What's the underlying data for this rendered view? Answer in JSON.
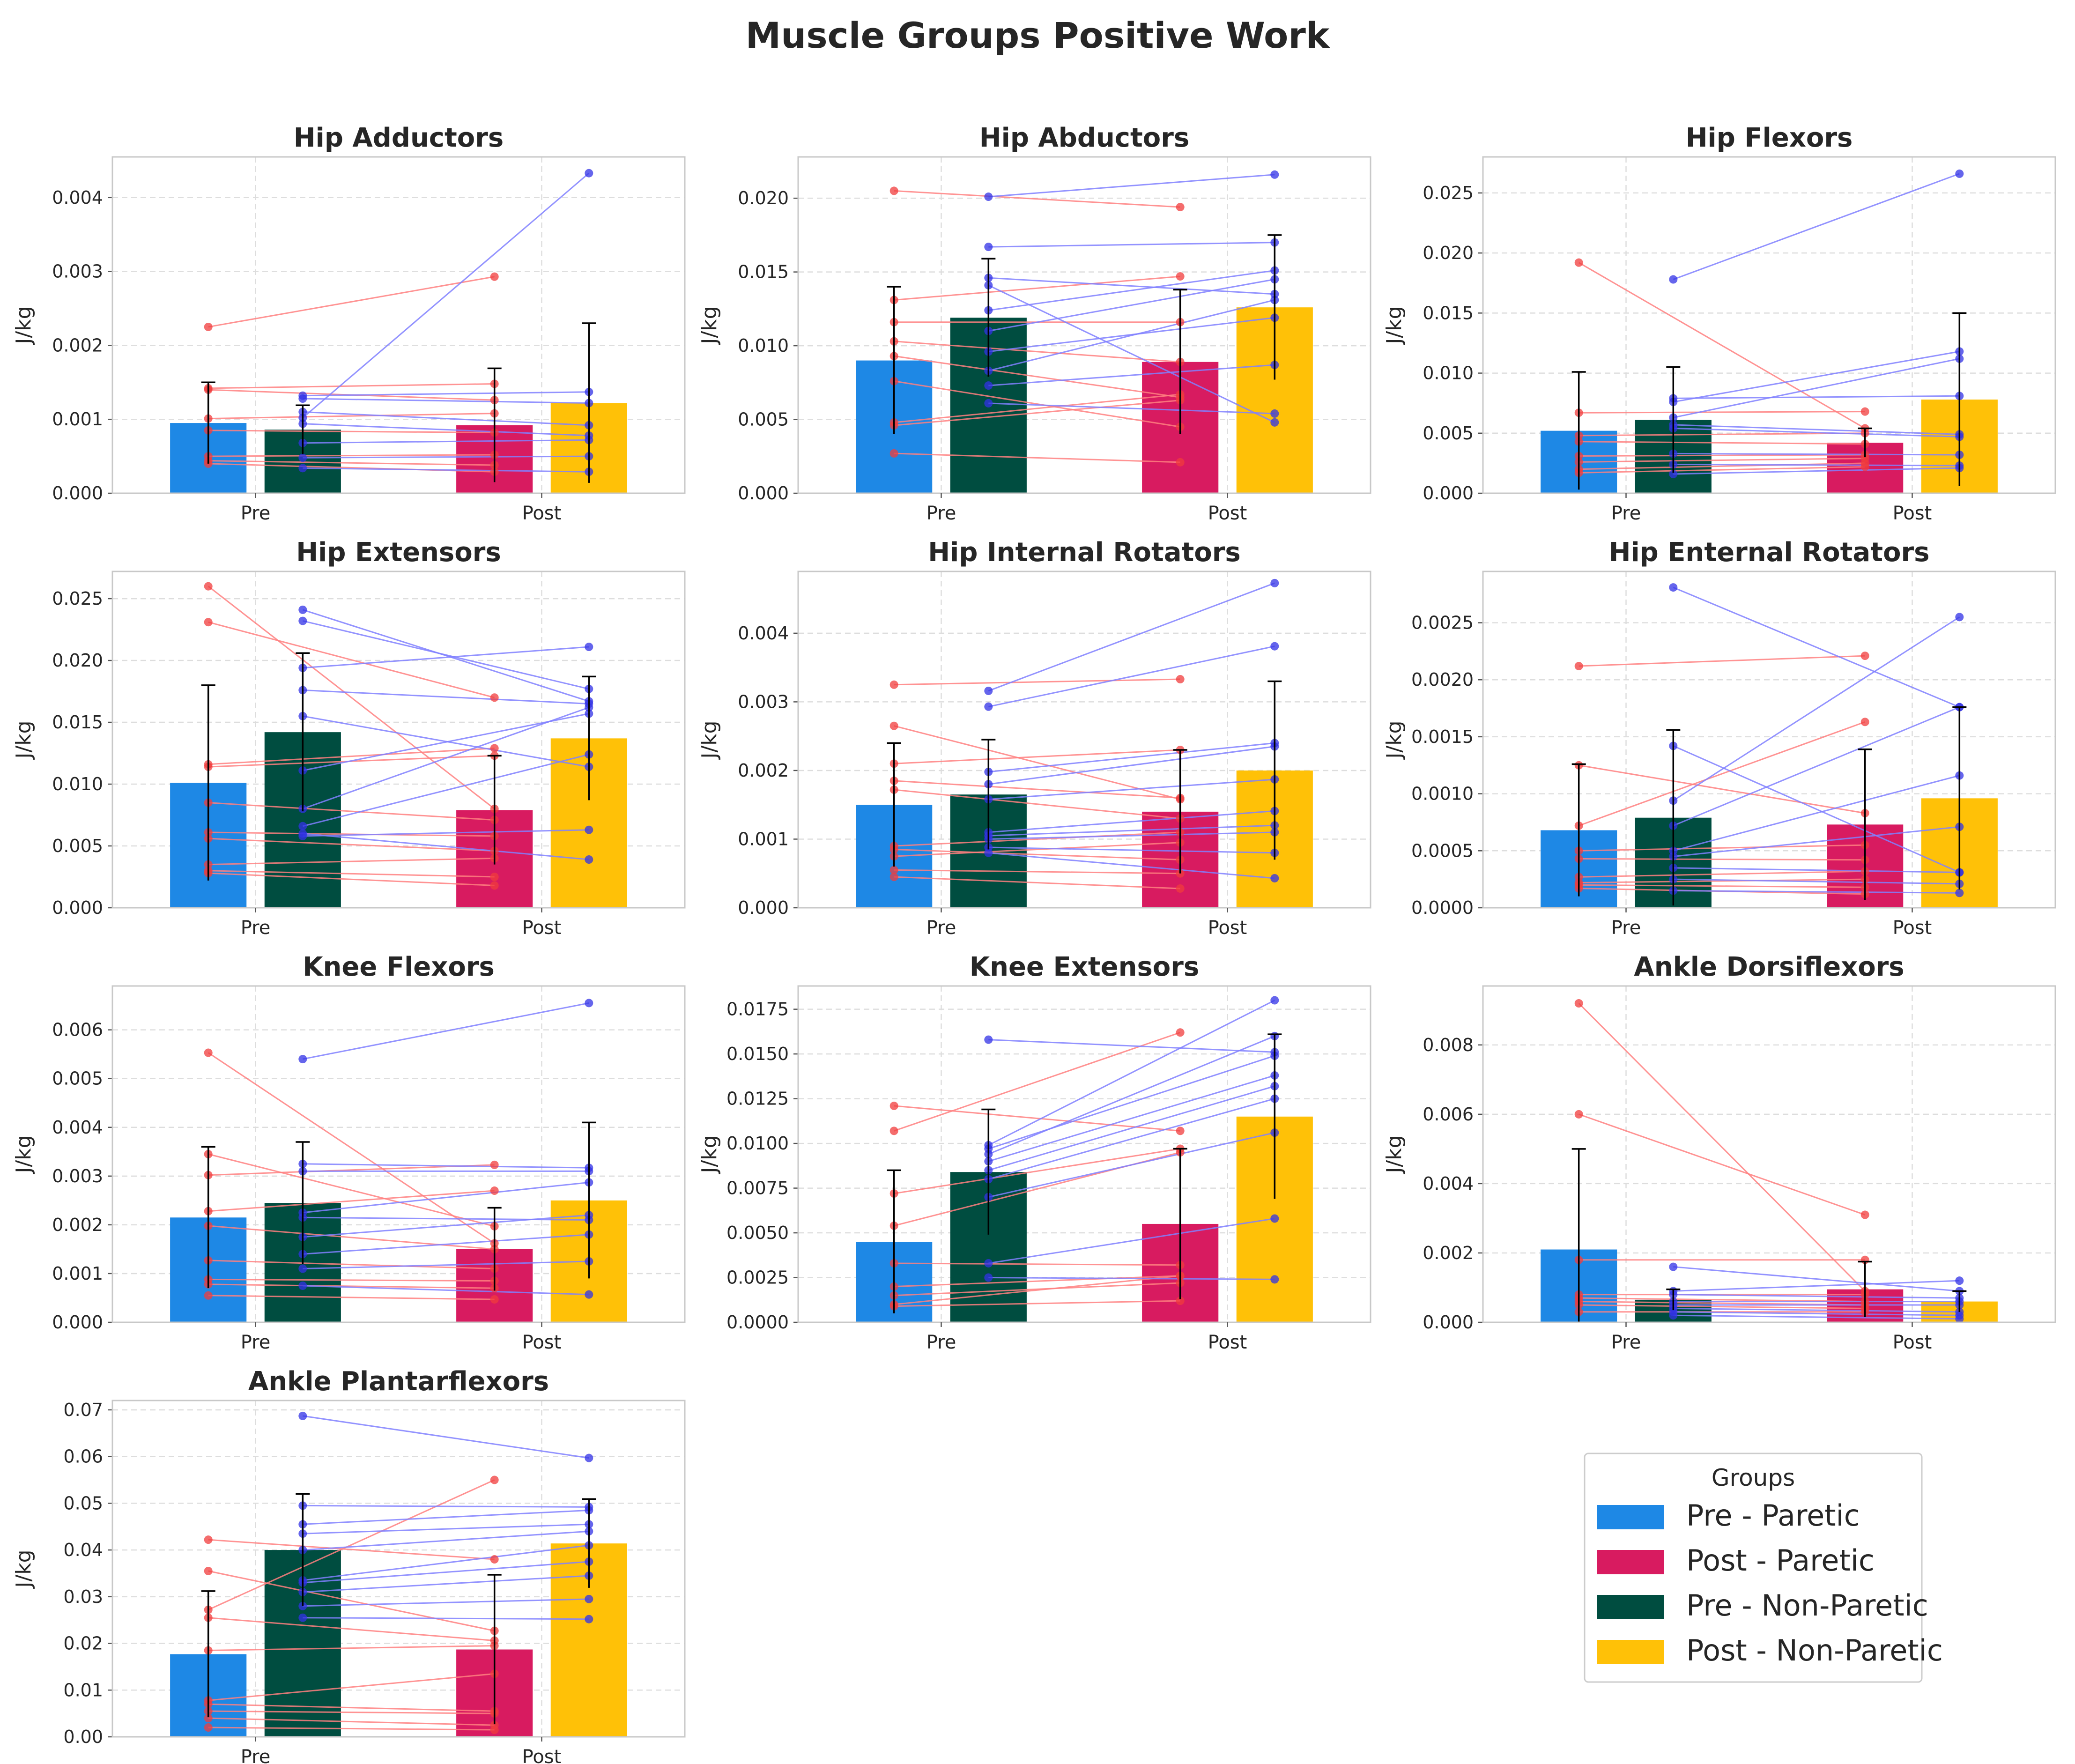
{
  "figure": {
    "title": "Muscle Groups Positive Work"
  },
  "colors": {
    "pre_paretic": "#1e88e5",
    "post_paretic": "#d81b60",
    "pre_nonparetic": "#004d40",
    "post_nonparetic": "#ffc107",
    "paretic_point": "#f03c3c",
    "nonparetic_point": "#3232e6",
    "paretic_line": "#ff8080",
    "nonparetic_line": "#8080ff"
  },
  "legend": {
    "title": "Groups",
    "entries": [
      {
        "label": "Pre - Paretic",
        "color": "#1e88e5"
      },
      {
        "label": "Post - Paretic",
        "color": "#d81b60"
      },
      {
        "label": "Pre - Non-Paretic",
        "color": "#004d40"
      },
      {
        "label": "Post - Non-Paretic",
        "color": "#ffc107"
      }
    ]
  },
  "chart_data": [
    {
      "type": "bar",
      "title": "Hip Adductors",
      "ylabel": "J/kg",
      "categories": [
        "Pre",
        "Post"
      ],
      "ylim": [
        0,
        0.00455
      ],
      "yticks": [
        0,
        0.001,
        0.002,
        0.003,
        0.004
      ],
      "ytick_labels": [
        "0.000",
        "0.001",
        "0.002",
        "0.003",
        "0.004"
      ],
      "bars": {
        "pre_paretic": [
          0.00095,
          0.00055
        ],
        "post_paretic": [
          0.00092,
          0.00077
        ],
        "pre_nonparetic": [
          0.00086,
          0.00033
        ],
        "post_nonparetic": [
          0.00122,
          0.00108
        ]
      },
      "paretic_pairs": [
        [
          0.00225,
          0.00293
        ],
        [
          0.00142,
          0.00148
        ],
        [
          0.0014,
          0.00126
        ],
        [
          0.00101,
          0.00108
        ],
        [
          0.00085,
          0.00082
        ],
        [
          0.0005,
          0.00052
        ],
        [
          0.00044,
          0.00038
        ],
        [
          0.0004,
          0.00029
        ]
      ],
      "nonparetic_pairs": [
        [
          0.00132,
          0.00137
        ],
        [
          0.00128,
          0.00122
        ],
        [
          0.0011,
          0.00092
        ],
        [
          0.00102,
          0.00433
        ],
        [
          0.00094,
          0.00078
        ],
        [
          0.00068,
          0.00072
        ],
        [
          0.00048,
          0.0005
        ],
        [
          0.00034,
          0.00029
        ]
      ]
    },
    {
      "type": "bar",
      "title": "Hip Abductors",
      "ylabel": "J/kg",
      "categories": [
        "Pre",
        "Post"
      ],
      "ylim": [
        0,
        0.0228
      ],
      "yticks": [
        0,
        0.005,
        0.01,
        0.015,
        0.02
      ],
      "ytick_labels": [
        "0.000",
        "0.005",
        "0.010",
        "0.015",
        "0.020"
      ],
      "bars": {
        "pre_paretic": [
          0.009,
          0.005
        ],
        "post_paretic": [
          0.0089,
          0.0049
        ],
        "pre_nonparetic": [
          0.0119,
          0.004
        ],
        "post_nonparetic": [
          0.0126,
          0.0049
        ]
      },
      "paretic_pairs": [
        [
          0.0205,
          0.0194
        ],
        [
          0.0131,
          0.0147
        ],
        [
          0.0116,
          0.0116
        ],
        [
          0.0103,
          0.0089
        ],
        [
          0.0093,
          0.0065
        ],
        [
          0.0076,
          0.0045
        ],
        [
          0.0048,
          0.0067
        ],
        [
          0.0046,
          0.0063
        ],
        [
          0.0027,
          0.0021
        ]
      ],
      "nonparetic_pairs": [
        [
          0.0201,
          0.0216
        ],
        [
          0.0167,
          0.017
        ],
        [
          0.0146,
          0.0135
        ],
        [
          0.0141,
          0.0048
        ],
        [
          0.0124,
          0.0151
        ],
        [
          0.011,
          0.0145
        ],
        [
          0.0096,
          0.0119
        ],
        [
          0.0083,
          0.0131
        ],
        [
          0.0073,
          0.0087
        ],
        [
          0.0061,
          0.0054
        ]
      ]
    },
    {
      "type": "bar",
      "title": "Hip Flexors",
      "ylabel": "J/kg",
      "categories": [
        "Pre",
        "Post"
      ],
      "ylim": [
        0,
        0.028
      ],
      "yticks": [
        0,
        0.005,
        0.01,
        0.015,
        0.02,
        0.025
      ],
      "ytick_labels": [
        "0.000",
        "0.005",
        "0.010",
        "0.015",
        "0.020",
        "0.025"
      ],
      "bars": {
        "pre_paretic": [
          0.0052,
          0.0049
        ],
        "post_paretic": [
          0.0042,
          0.0012
        ],
        "pre_nonparetic": [
          0.0061,
          0.0044
        ],
        "post_nonparetic": [
          0.0078,
          0.0072
        ]
      },
      "paretic_pairs": [
        [
          0.0192,
          0.0054
        ],
        [
          0.0067,
          0.0068
        ],
        [
          0.0048,
          0.005
        ],
        [
          0.0043,
          0.0041
        ],
        [
          0.0031,
          0.0032
        ],
        [
          0.0026,
          0.0029
        ],
        [
          0.002,
          0.0025
        ],
        [
          0.0017,
          0.0022
        ]
      ],
      "nonparetic_pairs": [
        [
          0.0178,
          0.0266
        ],
        [
          0.0079,
          0.0081
        ],
        [
          0.0076,
          0.0118
        ],
        [
          0.0063,
          0.0112
        ],
        [
          0.0057,
          0.0049
        ],
        [
          0.0054,
          0.0047
        ],
        [
          0.0033,
          0.0032
        ],
        [
          0.0024,
          0.0023
        ],
        [
          0.0016,
          0.0021
        ]
      ]
    },
    {
      "type": "bar",
      "title": "Hip Extensors",
      "ylabel": "J/kg",
      "categories": [
        "Pre",
        "Post"
      ],
      "ylim": [
        0,
        0.0272
      ],
      "yticks": [
        0,
        0.005,
        0.01,
        0.015,
        0.02,
        0.025
      ],
      "ytick_labels": [
        "0.000",
        "0.005",
        "0.010",
        "0.015",
        "0.020",
        "0.025"
      ],
      "bars": {
        "pre_paretic": [
          0.0101,
          0.0079
        ],
        "post_paretic": [
          0.0079,
          0.0044
        ],
        "pre_nonparetic": [
          0.0142,
          0.0064
        ],
        "post_nonparetic": [
          0.0137,
          0.005
        ]
      },
      "paretic_pairs": [
        [
          0.026,
          0.008
        ],
        [
          0.0231,
          0.017
        ],
        [
          0.0116,
          0.0129
        ],
        [
          0.0114,
          0.0123
        ],
        [
          0.0085,
          0.0071
        ],
        [
          0.0061,
          0.0058
        ],
        [
          0.0056,
          0.0046
        ],
        [
          0.0035,
          0.004
        ],
        [
          0.003,
          0.0025
        ],
        [
          0.0028,
          0.0018
        ]
      ],
      "nonparetic_pairs": [
        [
          0.0241,
          0.0167
        ],
        [
          0.0232,
          0.0177
        ],
        [
          0.0194,
          0.0211
        ],
        [
          0.0176,
          0.0165
        ],
        [
          0.0155,
          0.0114
        ],
        [
          0.0111,
          0.0157
        ],
        [
          0.008,
          0.0162
        ],
        [
          0.0066,
          0.0124
        ],
        [
          0.0058,
          0.0063
        ],
        [
          0.006,
          0.0039
        ]
      ]
    },
    {
      "type": "bar",
      "title": "Hip Internal Rotators",
      "ylabel": "J/kg",
      "categories": [
        "Pre",
        "Post"
      ],
      "ylim": [
        0,
        0.0049
      ],
      "yticks": [
        0,
        0.001,
        0.002,
        0.003,
        0.004
      ],
      "ytick_labels": [
        "0.000",
        "0.001",
        "0.002",
        "0.003",
        "0.004"
      ],
      "bars": {
        "pre_paretic": [
          0.0015,
          0.0009
        ],
        "post_paretic": [
          0.0014,
          0.0009
        ],
        "pre_nonparetic": [
          0.00165,
          0.0008
        ],
        "post_nonparetic": [
          0.002,
          0.0013
        ]
      },
      "paretic_pairs": [
        [
          0.00325,
          0.00333
        ],
        [
          0.00265,
          0.00158
        ],
        [
          0.0021,
          0.0023
        ],
        [
          0.00185,
          0.0016
        ],
        [
          0.00172,
          0.0013
        ],
        [
          0.0009,
          0.0011
        ],
        [
          0.00085,
          0.0007
        ],
        [
          0.00075,
          0.00095
        ],
        [
          0.00055,
          0.0005
        ],
        [
          0.00045,
          0.00028
        ]
      ],
      "nonparetic_pairs": [
        [
          0.00316,
          0.00473
        ],
        [
          0.00293,
          0.00381
        ],
        [
          0.00198,
          0.0024
        ],
        [
          0.0018,
          0.00235
        ],
        [
          0.00158,
          0.00187
        ],
        [
          0.0011,
          0.00141
        ],
        [
          0.00105,
          0.0012
        ],
        [
          0.001,
          0.0011
        ],
        [
          0.00088,
          0.0008
        ],
        [
          0.0008,
          0.00043
        ]
      ]
    },
    {
      "type": "bar",
      "title": "Hip Enternal Rotators",
      "ylabel": "J/kg",
      "categories": [
        "Pre",
        "Post"
      ],
      "ylim": [
        0,
        0.00295
      ],
      "yticks": [
        0,
        0.0005,
        0.001,
        0.0015,
        0.002,
        0.0025
      ],
      "ytick_labels": [
        "0.0000",
        "0.0005",
        "0.0010",
        "0.0015",
        "0.0020",
        "0.0025"
      ],
      "bars": {
        "pre_paretic": [
          0.00068,
          0.00058
        ],
        "post_paretic": [
          0.00073,
          0.00066
        ],
        "pre_nonparetic": [
          0.00079,
          0.00077
        ],
        "post_nonparetic": [
          0.00096,
          0.0008
        ]
      },
      "paretic_pairs": [
        [
          0.00212,
          0.00221
        ],
        [
          0.00125,
          0.00083
        ],
        [
          0.00072,
          0.00163
        ],
        [
          0.0005,
          0.00055
        ],
        [
          0.00043,
          0.00042
        ],
        [
          0.00027,
          0.00032
        ],
        [
          0.00022,
          0.00025
        ],
        [
          0.0002,
          0.00018
        ],
        [
          0.00017,
          0.00012
        ]
      ],
      "nonparetic_pairs": [
        [
          0.00281,
          0.00176
        ],
        [
          0.00142,
          0.00031
        ],
        [
          0.00094,
          0.00255
        ],
        [
          0.00072,
          0.00176
        ],
        [
          0.0005,
          0.00116
        ],
        [
          0.00045,
          0.00071
        ],
        [
          0.00035,
          0.00031
        ],
        [
          0.00025,
          0.00021
        ],
        [
          0.00015,
          0.00013
        ]
      ]
    },
    {
      "type": "bar",
      "title": "Knee Flexors",
      "ylabel": "J/kg",
      "categories": [
        "Pre",
        "Post"
      ],
      "ylim": [
        0,
        0.0069
      ],
      "yticks": [
        0,
        0.001,
        0.002,
        0.003,
        0.004,
        0.005,
        0.006
      ],
      "ytick_labels": [
        "0.000",
        "0.001",
        "0.002",
        "0.003",
        "0.004",
        "0.005",
        "0.006"
      ],
      "bars": {
        "pre_paretic": [
          0.00215,
          0.00145
        ],
        "post_paretic": [
          0.0015,
          0.00085
        ],
        "pre_nonparetic": [
          0.00245,
          0.00125
        ],
        "post_nonparetic": [
          0.0025,
          0.0016
        ]
      },
      "paretic_pairs": [
        [
          0.00553,
          0.00162
        ],
        [
          0.00345,
          0.00197
        ],
        [
          0.00302,
          0.00323
        ],
        [
          0.00228,
          0.0027
        ],
        [
          0.00198,
          0.0015
        ],
        [
          0.00127,
          0.0011
        ],
        [
          0.00088,
          0.00085
        ],
        [
          0.00078,
          0.0007
        ],
        [
          0.00055,
          0.00047
        ]
      ],
      "nonparetic_pairs": [
        [
          0.0054,
          0.00655
        ],
        [
          0.00325,
          0.00317
        ],
        [
          0.0031,
          0.0031
        ],
        [
          0.00225,
          0.00287
        ],
        [
          0.00215,
          0.0021
        ],
        [
          0.00175,
          0.0022
        ],
        [
          0.0014,
          0.0018
        ],
        [
          0.0011,
          0.00125
        ],
        [
          0.00075,
          0.00057
        ]
      ]
    },
    {
      "type": "bar",
      "title": "Knee Extensors",
      "ylabel": "J/kg",
      "categories": [
        "Pre",
        "Post"
      ],
      "ylim": [
        0,
        0.0188
      ],
      "yticks": [
        0,
        0.0025,
        0.005,
        0.0075,
        0.01,
        0.0125,
        0.015,
        0.0175
      ],
      "ytick_labels": [
        "0.0000",
        "0.0025",
        "0.0050",
        "0.0075",
        "0.0100",
        "0.0125",
        "0.0150",
        "0.0175"
      ],
      "bars": {
        "pre_paretic": [
          0.0045,
          0.004
        ],
        "post_paretic": [
          0.0055,
          0.0042
        ],
        "pre_nonparetic": [
          0.0084,
          0.0035
        ],
        "post_nonparetic": [
          0.0115,
          0.0046
        ]
      },
      "paretic_pairs": [
        [
          0.0121,
          0.0107
        ],
        [
          0.0107,
          0.0162
        ],
        [
          0.0072,
          0.0097
        ],
        [
          0.0054,
          0.0095
        ],
        [
          0.0033,
          0.0032
        ],
        [
          0.002,
          0.0026
        ],
        [
          0.0015,
          0.0022
        ],
        [
          0.001,
          0.0026
        ],
        [
          0.0009,
          0.0012
        ]
      ],
      "nonparetic_pairs": [
        [
          0.0158,
          0.0151
        ],
        [
          0.0099,
          0.018
        ],
        [
          0.0097,
          0.0149
        ],
        [
          0.0094,
          0.016
        ],
        [
          0.009,
          0.0138
        ],
        [
          0.0085,
          0.0132
        ],
        [
          0.008,
          0.0125
        ],
        [
          0.007,
          0.0106
        ],
        [
          0.0033,
          0.0058
        ],
        [
          0.0025,
          0.0024
        ]
      ]
    },
    {
      "type": "bar",
      "title": "Ankle Dorsiflexors",
      "ylabel": "J/kg",
      "categories": [
        "Pre",
        "Post"
      ],
      "ylim": [
        0,
        0.0097
      ],
      "yticks": [
        0,
        0.002,
        0.004,
        0.006,
        0.008
      ],
      "ytick_labels": [
        "0.000",
        "0.002",
        "0.004",
        "0.006",
        "0.008"
      ],
      "bars": {
        "pre_paretic": [
          0.0021,
          0.0029
        ],
        "post_paretic": [
          0.00095,
          0.0008
        ],
        "pre_nonparetic": [
          0.00065,
          0.0003
        ],
        "post_nonparetic": [
          0.0006,
          0.0003
        ]
      },
      "paretic_pairs": [
        [
          0.0092,
          0.0009
        ],
        [
          0.006,
          0.0031
        ],
        [
          0.0018,
          0.0018
        ],
        [
          0.0008,
          0.0008
        ],
        [
          0.0007,
          0.0006
        ],
        [
          0.0006,
          0.0005
        ],
        [
          0.0005,
          0.0004
        ],
        [
          0.0003,
          0.0003
        ]
      ],
      "nonparetic_pairs": [
        [
          0.0016,
          0.0009
        ],
        [
          0.0009,
          0.0012
        ],
        [
          0.0008,
          0.0007
        ],
        [
          0.0006,
          0.0006
        ],
        [
          0.0005,
          0.0005
        ],
        [
          0.0004,
          0.0003
        ],
        [
          0.0003,
          0.0002
        ],
        [
          0.0002,
          0.0001
        ]
      ]
    },
    {
      "type": "bar",
      "title": "Ankle Plantarflexors",
      "ylabel": "J/kg",
      "categories": [
        "Pre",
        "Post"
      ],
      "ylim": [
        0,
        0.072
      ],
      "yticks": [
        0,
        0.01,
        0.02,
        0.03,
        0.04,
        0.05,
        0.06,
        0.07
      ],
      "ytick_labels": [
        "0.00",
        "0.01",
        "0.02",
        "0.03",
        "0.04",
        "0.05",
        "0.06",
        "0.07"
      ],
      "bars": {
        "pre_paretic": [
          0.0177,
          0.0135
        ],
        "post_paretic": [
          0.0187,
          0.016
        ],
        "pre_nonparetic": [
          0.04,
          0.012
        ],
        "post_nonparetic": [
          0.0414,
          0.0095
        ]
      },
      "paretic_pairs": [
        [
          0.0422,
          0.038
        ],
        [
          0.0355,
          0.0227
        ],
        [
          0.0272,
          0.055
        ],
        [
          0.0255,
          0.0206
        ],
        [
          0.0185,
          0.0195
        ],
        [
          0.0078,
          0.0135
        ],
        [
          0.007,
          0.0055
        ],
        [
          0.0055,
          0.005
        ],
        [
          0.004,
          0.0025
        ],
        [
          0.002,
          0.0015
        ]
      ],
      "nonparetic_pairs": [
        [
          0.0687,
          0.0597
        ],
        [
          0.0495,
          0.0492
        ],
        [
          0.0455,
          0.0485
        ],
        [
          0.0435,
          0.0455
        ],
        [
          0.04,
          0.044
        ],
        [
          0.0335,
          0.041
        ],
        [
          0.033,
          0.0375
        ],
        [
          0.031,
          0.0345
        ],
        [
          0.028,
          0.0295
        ],
        [
          0.0255,
          0.0252
        ]
      ]
    }
  ]
}
